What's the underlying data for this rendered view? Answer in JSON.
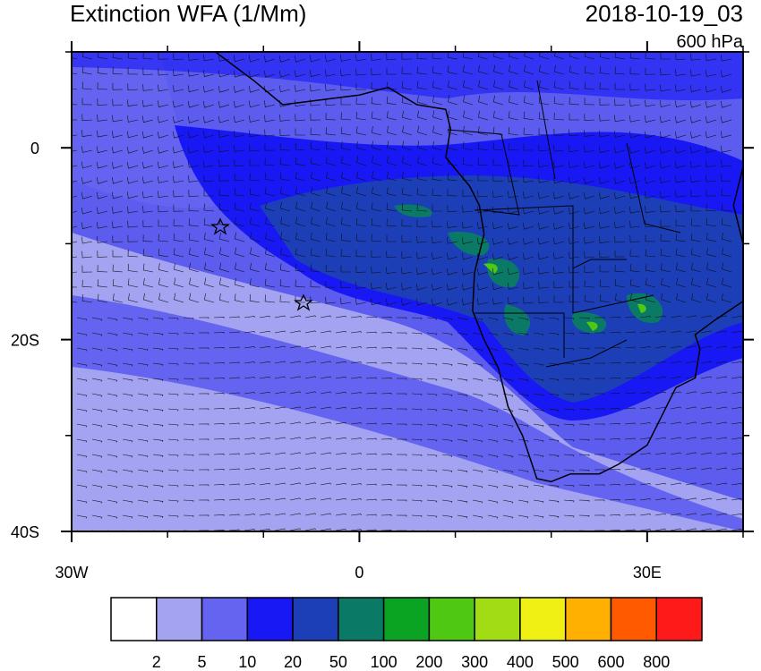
{
  "header": {
    "title": "Extinction WFA (1/Mm)",
    "date": "2018-10-19_03",
    "level": "600 hPa"
  },
  "map": {
    "lon_range": [
      -30,
      40
    ],
    "lat_range": [
      -40,
      10
    ],
    "lon_ticks": [
      {
        "value": -30,
        "label": "30W"
      },
      {
        "value": 0,
        "label": "0"
      },
      {
        "value": 30,
        "label": "30E"
      }
    ],
    "lat_ticks": [
      {
        "value": 0,
        "label": "0"
      },
      {
        "value": -20,
        "label": "20S"
      },
      {
        "value": -40,
        "label": "40S"
      }
    ],
    "lon_minor_ticks": [
      -20,
      -10,
      10,
      20,
      40
    ],
    "lat_minor_ticks": [
      10,
      -10,
      -30
    ]
  },
  "colorbar": {
    "boundaries": [
      2,
      5,
      10,
      20,
      50,
      100,
      200,
      300,
      400,
      500,
      600,
      800
    ],
    "colors": [
      "#ffffff",
      "#a3a3f2",
      "#6464f0",
      "#1818f5",
      "#1c3fb8",
      "#0a7a66",
      "#0aa322",
      "#4fc814",
      "#a2dc14",
      "#f0f014",
      "#ffb000",
      "#ff5a00",
      "#ff1a1a"
    ]
  }
}
